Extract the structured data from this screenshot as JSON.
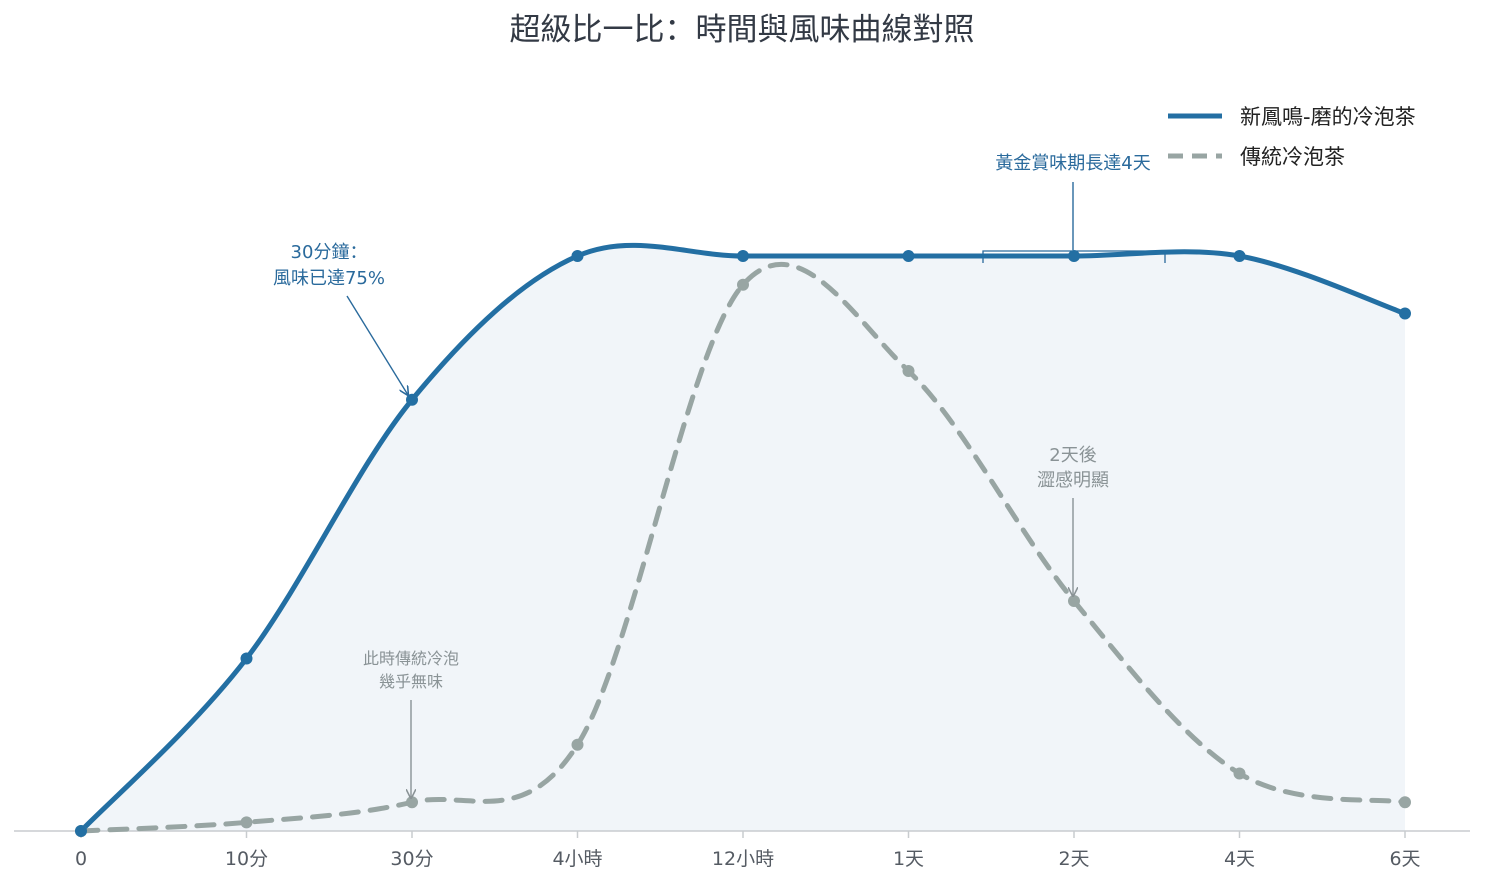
{
  "chart_data": {
    "type": "line",
    "title": "超級比一比：時間與風味曲線對照",
    "xlabel": "",
    "ylabel": "",
    "categories": [
      "0",
      "10分",
      "30分",
      "4小時",
      "12小時",
      "1天",
      "2天",
      "4天",
      "6天"
    ],
    "ylim": [
      0,
      100
    ],
    "grid": false,
    "legend_position": "top-right",
    "series": [
      {
        "name": "新鳳鳴-磨的冷泡茶",
        "color": "#236fa3",
        "style": "solid",
        "values": [
          0,
          30,
          75,
          100,
          100,
          100,
          100,
          100,
          90
        ]
      },
      {
        "name": "傳統冷泡茶",
        "color": "#98a5a3",
        "style": "dashed",
        "values": [
          0,
          1.5,
          5,
          15,
          95,
          80,
          40,
          10,
          5
        ]
      }
    ],
    "annotations": [
      {
        "id": "ann-30min",
        "lines": [
          "30分鐘：",
          "風味已達75%"
        ],
        "color": "#2a6a9c",
        "target_index": 2,
        "series": 0
      },
      {
        "id": "ann-golden",
        "lines": [
          "黃金賞味期長達4天"
        ],
        "color": "#2a6a9c",
        "target_index": 6,
        "series": 0
      },
      {
        "id": "ann-traditional",
        "lines": [
          "此時傳統冷泡",
          "幾乎無味"
        ],
        "color": "#8a9396",
        "target_index": 2,
        "series": 1
      },
      {
        "id": "ann-2days",
        "lines": [
          "2天後",
          "澀感明顯"
        ],
        "color": "#8a9396",
        "target_index": 6,
        "series": 1
      }
    ]
  }
}
